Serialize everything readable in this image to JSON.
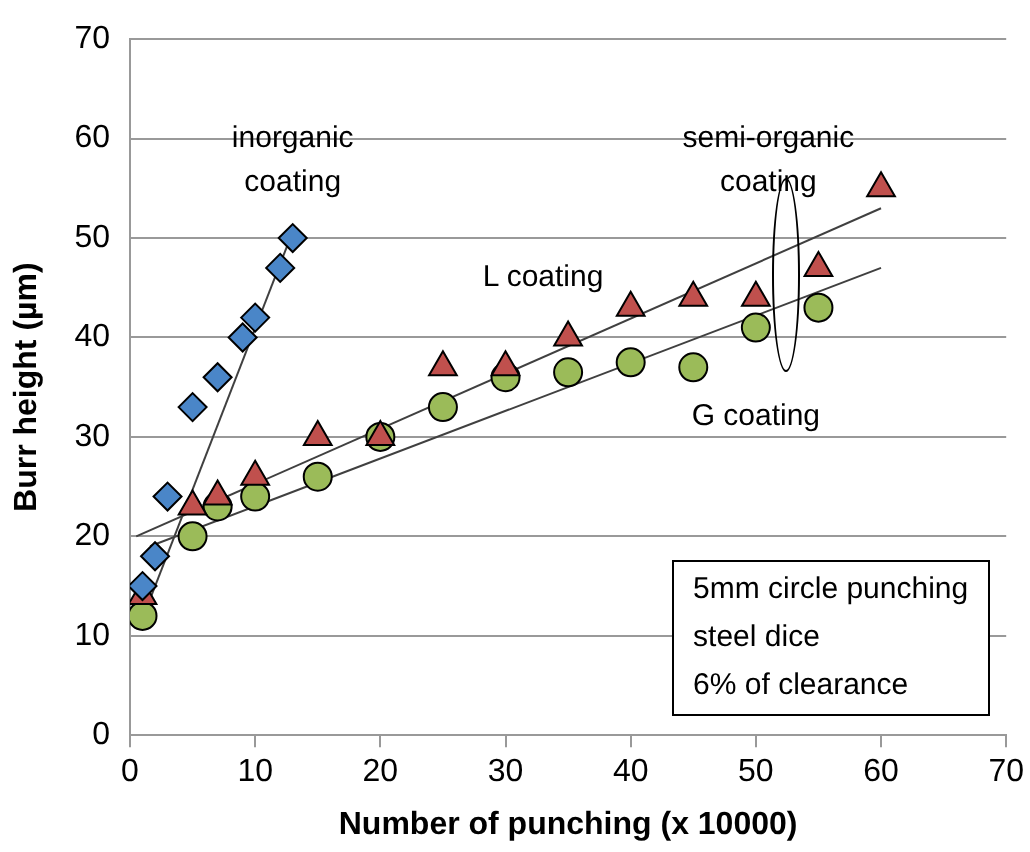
{
  "chart_data": {
    "type": "scatter",
    "xlabel": "Number of punching (x 10000)",
    "ylabel": "Burr height (µm)",
    "xlim": [
      0,
      70
    ],
    "xticks": [
      0,
      10,
      20,
      30,
      40,
      50,
      60,
      70
    ],
    "ylim": [
      0,
      70
    ],
    "yticks": [
      0,
      10,
      20,
      30,
      40,
      50,
      60,
      70
    ],
    "grid": "y",
    "series": [
      {
        "name": "inorganic\ncoating",
        "marker": "diamond",
        "color": "#4a86c8",
        "x": [
          1,
          2,
          3,
          5,
          7,
          9,
          10,
          12,
          13
        ],
        "values": [
          15,
          18,
          24,
          33,
          36,
          40,
          42,
          47,
          50
        ]
      },
      {
        "name": "L coating",
        "marker": "triangle",
        "color": "#c0504d",
        "x": [
          1,
          5,
          7,
          10,
          15,
          20,
          25,
          30,
          35,
          40,
          45,
          50,
          55,
          60
        ],
        "values": [
          14,
          23,
          24,
          26,
          30,
          30,
          37,
          37,
          40,
          43,
          44,
          44,
          47,
          55
        ]
      },
      {
        "name": "G coating",
        "marker": "circle",
        "color": "#9bbb59",
        "x": [
          1,
          5,
          7,
          10,
          15,
          20,
          25,
          30,
          35,
          40,
          45,
          50,
          55
        ],
        "values": [
          12,
          20,
          23,
          24,
          26,
          30,
          33,
          36,
          36.5,
          37.5,
          37,
          41,
          43
        ]
      },
      {
        "type": "line",
        "marker": "none",
        "color": "#404040",
        "x": [
          1.3,
          12.8
        ],
        "values": [
          12.7,
          50
        ]
      },
      {
        "type": "line",
        "marker": "none",
        "color": "#404040",
        "x": [
          0.5,
          60
        ],
        "values": [
          20,
          53
        ]
      },
      {
        "type": "line",
        "marker": "none",
        "color": "#404040",
        "x": [
          1.6,
          60
        ],
        "values": [
          19,
          47
        ]
      }
    ],
    "annotations": [
      "semi-organic\ncoating",
      "5mm circle punching\nsteel dice\n6% of clearance"
    ]
  }
}
